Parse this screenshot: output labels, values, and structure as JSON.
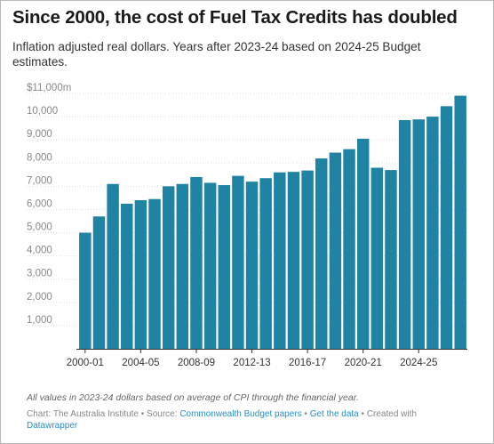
{
  "header": {
    "title": "Since 2000, the cost of Fuel Tax Credits has doubled",
    "subtitle": "Inflation adjusted real dollars. Years after 2023-24 based on 2024-25 Budget estimates."
  },
  "footer": {
    "note": "All values in 2023-24 dollars based on average of CPI through the financial year.",
    "chart_prefix": "Chart: The Australia Institute",
    "source_prefix": "• Source:",
    "source_link": "Commonwealth Budget papers",
    "sep": "•",
    "data_link": "Get the data",
    "created_with": "• Created with",
    "datawrapper_link": "Datawrapper"
  },
  "colors": {
    "bar": "#1f83a3",
    "axis": "#333333",
    "grid": "#dddddd"
  },
  "chart_data": {
    "type": "bar",
    "title": "Since 2000, the cost of Fuel Tax Credits has doubled",
    "subtitle": "Inflation adjusted real dollars. Years after 2023-24 based on 2024-25 Budget estimates.",
    "xlabel": "",
    "ylabel": "",
    "categories": [
      "2000-01",
      "2001-02",
      "2002-03",
      "2003-04",
      "2004-05",
      "2005-06",
      "2006-07",
      "2007-08",
      "2008-09",
      "2009-10",
      "2010-11",
      "2011-12",
      "2012-13",
      "2013-14",
      "2014-15",
      "2015-16",
      "2016-17",
      "2017-18",
      "2018-19",
      "2019-20",
      "2020-21",
      "2021-22",
      "2022-23",
      "2023-24",
      "2024-25",
      "2025-26",
      "2026-27",
      "2027-28"
    ],
    "values": [
      5000,
      5700,
      7100,
      6250,
      6400,
      6450,
      7000,
      7100,
      7400,
      7150,
      7050,
      7450,
      7200,
      7350,
      7600,
      7620,
      7680,
      8200,
      8450,
      8600,
      9050,
      7800,
      7700,
      9850,
      9880,
      10000,
      10450,
      10900
    ],
    "y_unit_suffix": "m",
    "ylim": [
      0,
      11000
    ],
    "yticks": [
      1000,
      2000,
      3000,
      4000,
      5000,
      6000,
      7000,
      8000,
      9000,
      10000,
      11000
    ],
    "ytick_labels": [
      "1,000",
      "2,000",
      "3,000",
      "4,000",
      "5,000",
      "6,000",
      "7,000",
      "8,000",
      "9,000",
      "10,000",
      "$11,000m"
    ],
    "xtick_labels": [
      "2000-01",
      "2004-05",
      "2008-09",
      "2012-13",
      "2016-17",
      "2020-21",
      "2024-25"
    ],
    "grid": true,
    "legend": "none"
  }
}
